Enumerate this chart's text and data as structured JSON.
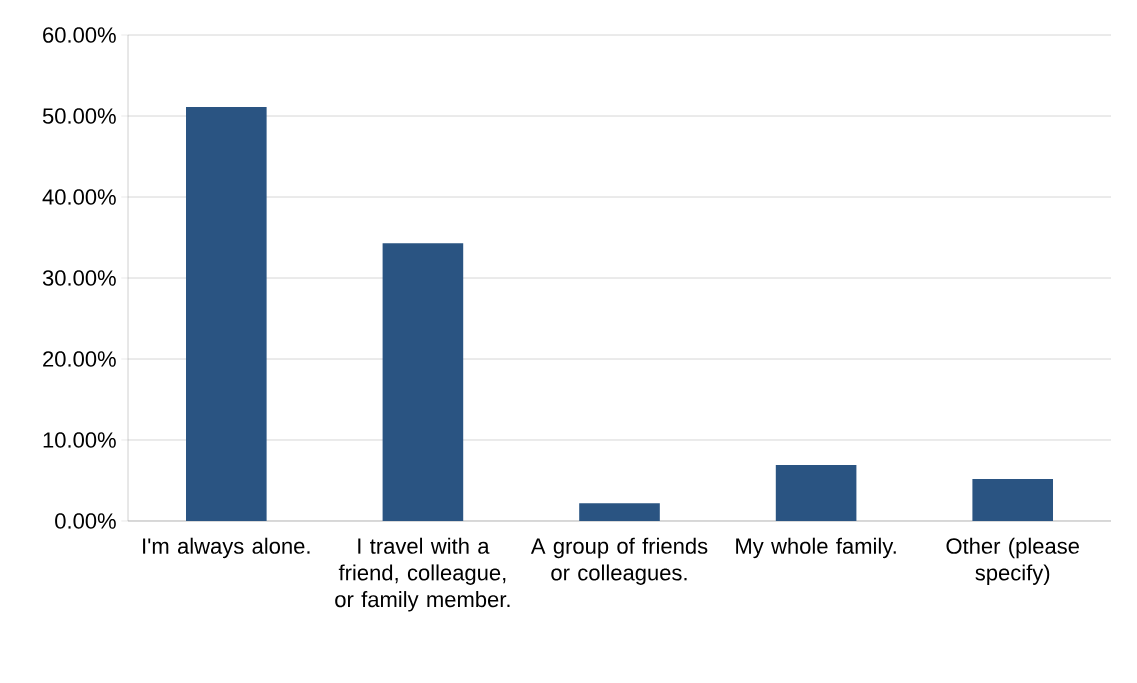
{
  "chart_data": {
    "type": "bar",
    "categories": [
      "I'm always alone.",
      "I travel with a friend, colleague, or family member.",
      "A group of friends or colleagues.",
      "My whole family.",
      "Other (please specify)"
    ],
    "values": [
      51.1,
      34.3,
      2.2,
      6.9,
      5.2
    ],
    "color": "#2a5482",
    "ylim": [
      0,
      60
    ],
    "yticks": [
      {
        "value": 0,
        "label": "0.00%"
      },
      {
        "value": 10,
        "label": "10.00%"
      },
      {
        "value": 20,
        "label": "20.00%"
      },
      {
        "value": 30,
        "label": "30.00%"
      },
      {
        "value": 40,
        "label": "40.00%"
      },
      {
        "value": 50,
        "label": "50.00%"
      },
      {
        "value": 60,
        "label": "60.00%"
      }
    ],
    "grid": "y"
  }
}
